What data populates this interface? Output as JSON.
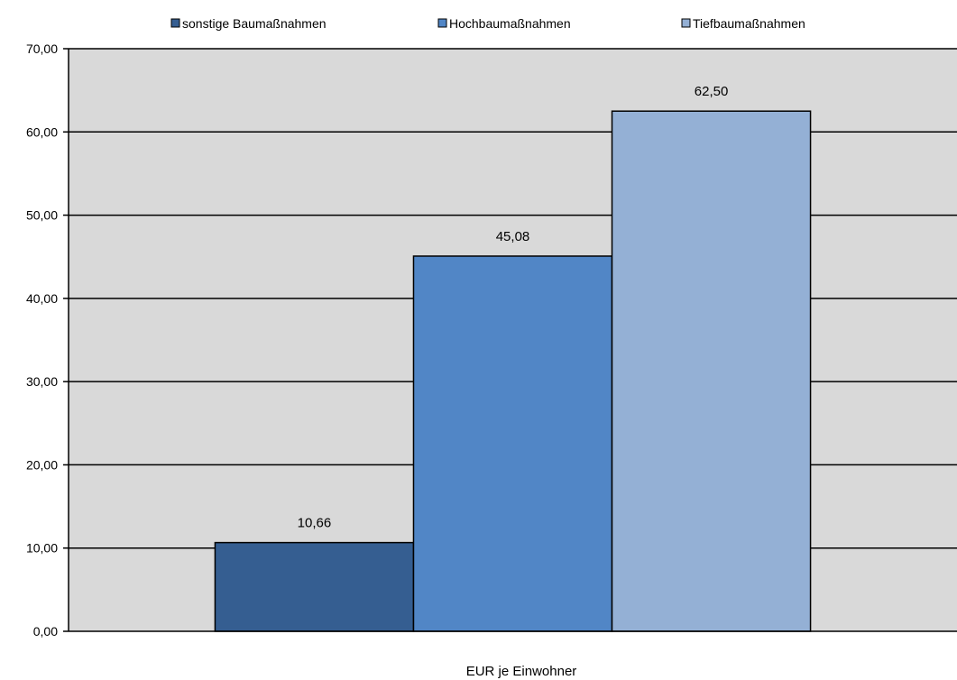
{
  "chart_data": {
    "type": "bar",
    "title": "",
    "xlabel": "EUR je Einwohner",
    "ylabel": "",
    "ylim": [
      0,
      70
    ],
    "yticks": [
      "0,00",
      "10,00",
      "20,00",
      "30,00",
      "40,00",
      "50,00",
      "60,00",
      "70,00"
    ],
    "ytick_values": [
      0,
      10,
      20,
      30,
      40,
      50,
      60,
      70
    ],
    "grid": true,
    "legend_position": "top",
    "categories": [
      "EUR je Einwohner"
    ],
    "series": [
      {
        "name": "sonstige Baumaßnahmen",
        "values": [
          10.66
        ],
        "label": "10,66",
        "color": "#355e91"
      },
      {
        "name": "Hochbaumaßnahmen",
        "values": [
          45.08
        ],
        "label": "45,08",
        "color": "#5186c6"
      },
      {
        "name": "Tiefbaumaßnahmen",
        "values": [
          62.5
        ],
        "label": "62,50",
        "color": "#94b0d5"
      }
    ]
  }
}
